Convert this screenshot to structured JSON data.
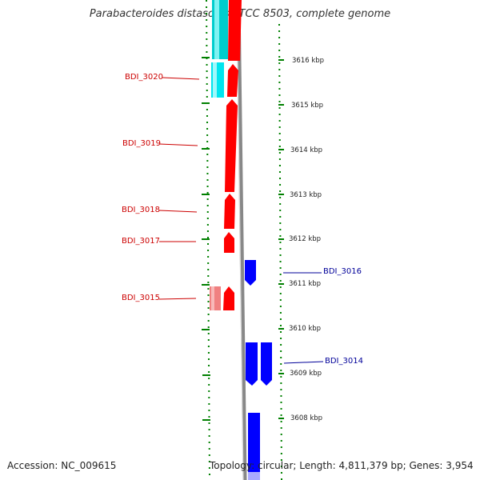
{
  "title": "Parabacteroides distasonis ATCC 8503, complete genome",
  "footer": {
    "accession": "Accession: NC_009615",
    "stats": "Topology: circular; Length: 4,811,379 bp; Genes: 3,954"
  },
  "colors": {
    "forward_gene": "#ff0000",
    "forward_gene_faded": "#f08080",
    "reverse_gene": "#0000ff",
    "rna_feature": "#00e5ee",
    "forward_label": "#cc0000",
    "reverse_label": "#000099",
    "tick": "#008000",
    "backbone": "#888888"
  },
  "forward_labels": [
    "BDI_3020",
    "BDI_3019",
    "BDI_3018",
    "BDI_3017",
    "BDI_3015"
  ],
  "reverse_labels": [
    "BDI_3016",
    "BDI_3014"
  ],
  "kbp_ticks": [
    "3616 kbp",
    "3615 kbp",
    "3614 kbp",
    "3613 kbp",
    "3612 kbp",
    "3611 kbp",
    "3610 kbp",
    "3609 kbp",
    "3608 kbp"
  ]
}
